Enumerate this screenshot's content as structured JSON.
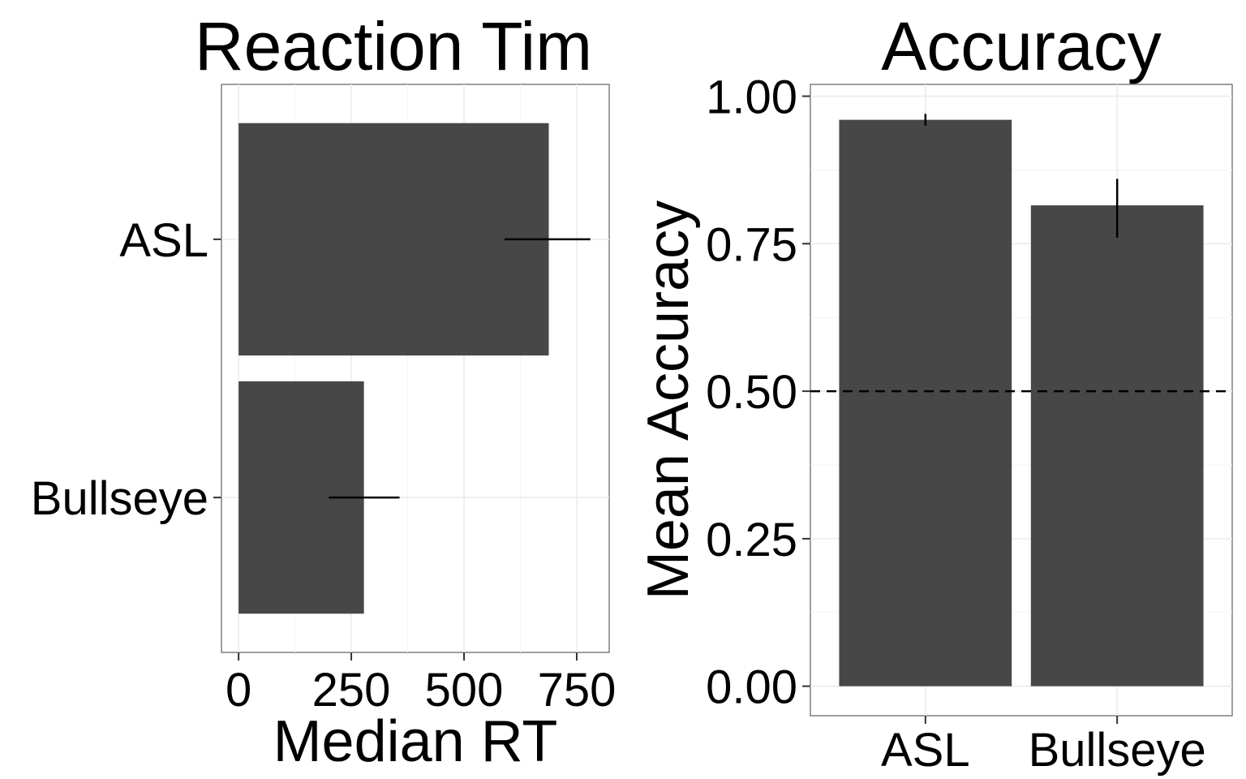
{
  "chart_data": [
    {
      "type": "bar",
      "orientation": "horizontal",
      "title": "Reaction Tim",
      "xlabel": "Median RT",
      "ylabel": "",
      "categories": [
        "ASL",
        "Bullseye"
      ],
      "values": [
        688,
        278
      ],
      "error_low": [
        590,
        200
      ],
      "error_high": [
        780,
        357
      ],
      "xlim": [
        -38,
        822
      ],
      "xticks": [
        0,
        250,
        500,
        750
      ],
      "xtick_labels": [
        "0",
        "250",
        "500",
        "750"
      ],
      "grid": true,
      "bar_color": "#474747"
    },
    {
      "type": "bar",
      "orientation": "vertical",
      "title": "Accuracy",
      "xlabel": "",
      "ylabel": "Mean Accuracy",
      "categories": [
        "ASL",
        "Bullseye"
      ],
      "values": [
        0.96,
        0.815
      ],
      "error_low": [
        0.95,
        0.76
      ],
      "error_high": [
        0.97,
        0.86
      ],
      "ylim": [
        -0.05,
        1.02
      ],
      "yticks": [
        0.0,
        0.25,
        0.5,
        0.75,
        1.0
      ],
      "ytick_labels": [
        "0.00",
        "0.25",
        "0.50",
        "0.75",
        "1.00"
      ],
      "reference_line": {
        "y": 0.5,
        "style": "dashed"
      },
      "grid": true,
      "bar_color": "#474747"
    }
  ]
}
